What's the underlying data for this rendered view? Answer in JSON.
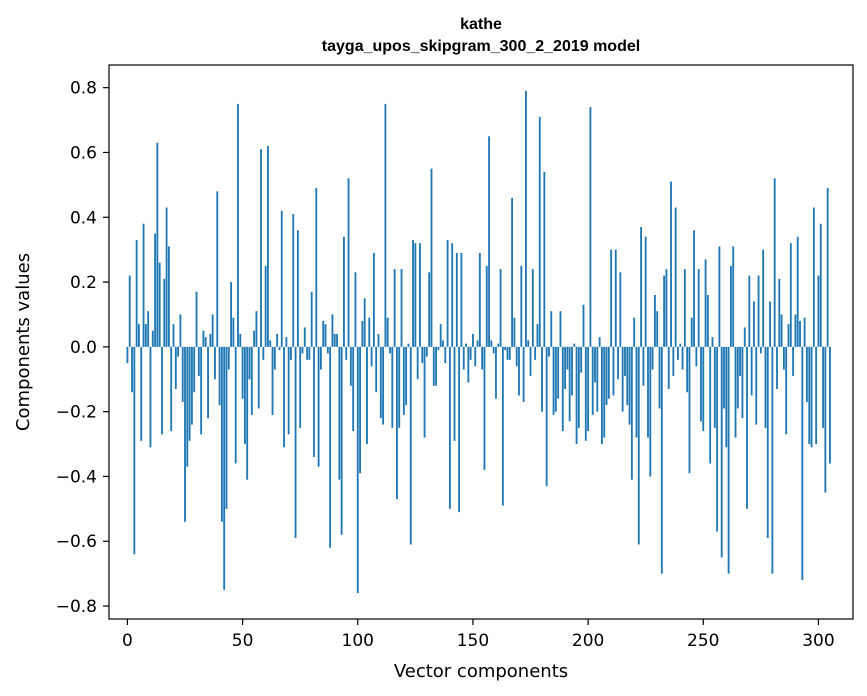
{
  "chart_data": {
    "type": "bar",
    "title": "kathe",
    "subtitle": "tayga_upos_skipgram_300_2_2019 model",
    "xlabel": "Vector components",
    "ylabel": "Components values",
    "xlim": [
      -8,
      315
    ],
    "ylim": [
      -0.84,
      0.87
    ],
    "xticks": [
      0,
      50,
      100,
      150,
      200,
      250,
      300
    ],
    "xtick_labels": [
      "0",
      "50",
      "100",
      "150",
      "200",
      "250",
      "300"
    ],
    "yticks": [
      -0.8,
      -0.6,
      -0.4,
      -0.2,
      0.0,
      0.2,
      0.4,
      0.6,
      0.8
    ],
    "ytick_labels": [
      "−0.8",
      "−0.6",
      "−0.4",
      "−0.2",
      "0.0",
      "0.2",
      "0.4",
      "0.6",
      "0.8"
    ],
    "bar_color": "#1f77b4",
    "grid": false,
    "values": [
      -0.05,
      0.22,
      -0.14,
      -0.64,
      0.33,
      0.07,
      -0.29,
      0.38,
      0.07,
      0.11,
      -0.31,
      0.05,
      0.35,
      0.63,
      0.26,
      -0.27,
      0.21,
      0.43,
      0.31,
      -0.26,
      0.07,
      -0.13,
      -0.03,
      0.1,
      -0.17,
      -0.54,
      -0.37,
      -0.29,
      -0.24,
      -0.14,
      0.17,
      -0.09,
      -0.27,
      0.05,
      0.03,
      -0.22,
      0.04,
      0.1,
      -0.1,
      0.48,
      -0.18,
      -0.54,
      -0.75,
      -0.5,
      -0.07,
      0.2,
      0.09,
      -0.36,
      0.75,
      0.04,
      -0.16,
      -0.3,
      -0.41,
      -0.1,
      -0.21,
      0.05,
      0.11,
      -0.19,
      0.61,
      -0.04,
      0.25,
      0.62,
      0.02,
      -0.21,
      -0.07,
      0.04,
      -0.01,
      0.42,
      -0.31,
      0.03,
      -0.27,
      -0.04,
      0.41,
      -0.59,
      0.36,
      -0.25,
      -0.02,
      0.06,
      -0.04,
      -0.04,
      0.17,
      -0.34,
      0.49,
      -0.37,
      -0.07,
      0.08,
      0.07,
      -0.02,
      -0.62,
      0.1,
      0.04,
      0.04,
      -0.41,
      -0.58,
      0.34,
      -0.04,
      0.52,
      -0.12,
      -0.26,
      0.23,
      -0.76,
      -0.39,
      0.08,
      0.15,
      -0.3,
      0.09,
      -0.06,
      0.29,
      -0.14,
      0.04,
      -0.22,
      -0.24,
      0.75,
      0.09,
      -0.02,
      -0.25,
      0.24,
      -0.47,
      -0.25,
      0.24,
      -0.21,
      -0.18,
      0.01,
      -0.61,
      0.33,
      0.32,
      -0.1,
      0.32,
      -0.05,
      -0.28,
      -0.03,
      0.23,
      0.55,
      -0.12,
      -0.12,
      -0.01,
      0.07,
      0.02,
      -0.05,
      0.33,
      -0.5,
      0.32,
      -0.29,
      0.29,
      -0.51,
      0.29,
      -0.07,
      0.01,
      -0.11,
      -0.04,
      0.04,
      -0.06,
      0.02,
      0.29,
      -0.07,
      -0.38,
      0.25,
      0.65,
      0.02,
      -0.02,
      -0.16,
      0.01,
      0.24,
      -0.49,
      -0.01,
      -0.04,
      -0.04,
      0.46,
      0.09,
      -0.06,
      -0.15,
      0.25,
      -0.17,
      0.79,
      0.02,
      -0.09,
      0.24,
      -0.04,
      0.07,
      0.71,
      -0.2,
      0.54,
      -0.43,
      -0.03,
      0.11,
      -0.21,
      -0.2,
      -0.16,
      0.11,
      -0.26,
      -0.13,
      -0.07,
      -0.23,
      -0.15,
      0.01,
      -0.3,
      -0.25,
      -0.08,
      0.13,
      -0.29,
      -0.26,
      0.74,
      -0.21,
      -0.11,
      -0.2,
      0.03,
      -0.3,
      -0.28,
      -0.18,
      -0.16,
      0.3,
      -0.15,
      0.3,
      -0.1,
      0.23,
      -0.2,
      -0.09,
      -0.18,
      -0.24,
      -0.41,
      0.09,
      -0.28,
      -0.61,
      0.37,
      -0.12,
      0.34,
      -0.28,
      -0.4,
      -0.07,
      0.16,
      0.11,
      -0.19,
      -0.7,
      0.22,
      0.24,
      -0.13,
      0.51,
      -0.09,
      0.43,
      -0.04,
      0.01,
      -0.07,
      0.24,
      -0.14,
      -0.39,
      0.09,
      0.36,
      -0.06,
      0.24,
      -0.23,
      -0.26,
      0.27,
      0.16,
      -0.36,
      0.03,
      -0.25,
      -0.57,
      0.31,
      -0.65,
      -0.19,
      -0.31,
      -0.7,
      0.25,
      0.31,
      -0.28,
      -0.19,
      -0.09,
      -0.22,
      0.06,
      -0.5,
      0.22,
      -0.15,
      0.14,
      -0.24,
      0.22,
      -0.02,
      0.3,
      -0.25,
      -0.59,
      0.14,
      -0.7,
      0.52,
      -0.13,
      0.21,
      0.1,
      -0.07,
      -0.27,
      0.07,
      0.32,
      -0.09,
      0.1,
      0.34,
      0.08,
      -0.72,
      0.09,
      -0.17,
      -0.3,
      -0.31,
      0.43,
      -0.3,
      0.22,
      0.38,
      -0.25,
      -0.45,
      0.49,
      -0.36
    ]
  }
}
